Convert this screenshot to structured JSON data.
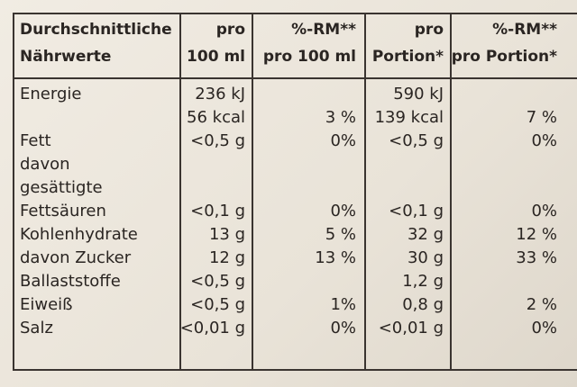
{
  "table": {
    "header": [
      [
        "Durchschnittliche",
        "Nährwerte"
      ],
      [
        "pro",
        "100 ml"
      ],
      [
        "%-RM**",
        "pro 100 ml"
      ],
      [
        "pro",
        "Portion*"
      ],
      [
        "%-RM**",
        "pro Portion*"
      ]
    ],
    "rows": [
      [
        [
          "Energie"
        ],
        [
          "236 kJ",
          "56 kcal"
        ],
        [
          "3 %"
        ],
        [
          "590 kJ",
          "139 kcal"
        ],
        [
          "7 %"
        ]
      ],
      [
        [
          "Fett"
        ],
        [
          "<0,5 g"
        ],
        [
          "0%"
        ],
        [
          "<0,5 g"
        ],
        [
          "0%"
        ]
      ],
      [
        [
          "davon",
          "gesättigte",
          "Fettsäuren"
        ],
        [
          "<0,1 g"
        ],
        [
          "0%"
        ],
        [
          "<0,1 g"
        ],
        [
          "0%"
        ]
      ],
      [
        [
          "Kohlenhydrate"
        ],
        [
          "13 g"
        ],
        [
          "5 %"
        ],
        [
          "32 g"
        ],
        [
          "12 %"
        ]
      ],
      [
        [
          "davon Zucker"
        ],
        [
          "12 g"
        ],
        [
          "13 %"
        ],
        [
          "30 g"
        ],
        [
          "33 %"
        ]
      ],
      [
        [
          "Ballaststoffe"
        ],
        [
          "<0,5 g"
        ],
        null,
        [
          "1,2 g"
        ],
        null
      ],
      [
        [
          "Eiweiß"
        ],
        [
          "<0,5 g"
        ],
        [
          "1%"
        ],
        [
          "0,8 g"
        ],
        [
          "2 %"
        ]
      ],
      [
        [
          "Salz"
        ],
        [
          "<0,01 g"
        ],
        [
          "0%"
        ],
        [
          "<0,01 g"
        ],
        [
          "0%"
        ]
      ]
    ]
  }
}
